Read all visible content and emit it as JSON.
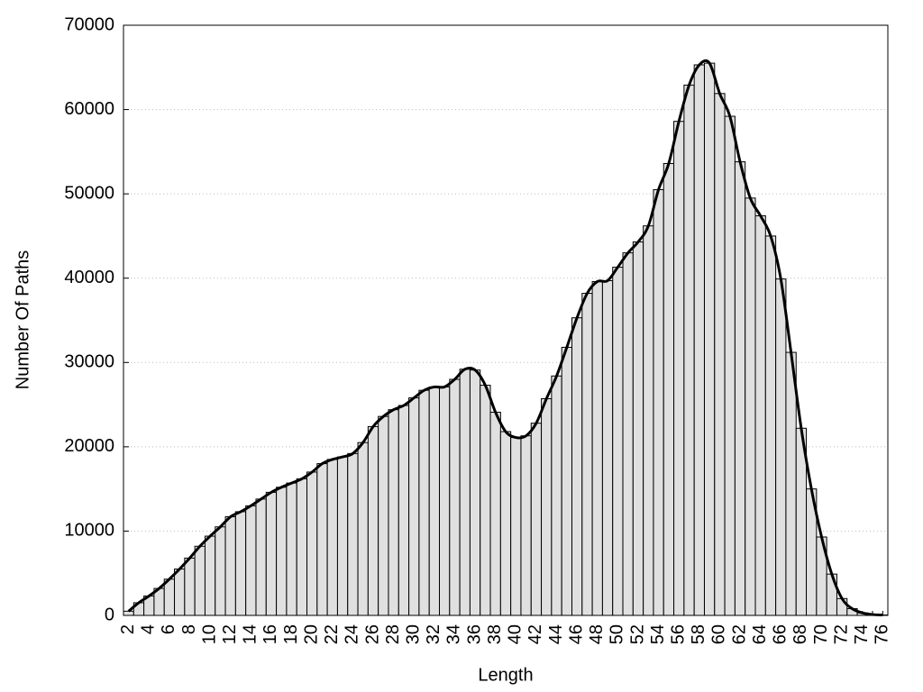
{
  "chart_data": {
    "type": "bar",
    "xlabel": "Length",
    "ylabel": "Number Of Paths",
    "categories": [
      "2",
      null,
      "4",
      null,
      "6",
      null,
      "8",
      null,
      "10",
      null,
      "12",
      null,
      "14",
      null,
      "16",
      null,
      "18",
      null,
      "20",
      null,
      "22",
      null,
      "24",
      null,
      "26",
      null,
      "28",
      null,
      "30",
      null,
      "32",
      null,
      "34",
      null,
      "36",
      null,
      "38",
      null,
      "40",
      null,
      "42",
      null,
      "44",
      null,
      "46",
      null,
      "48",
      null,
      "50",
      null,
      "52",
      null,
      "54",
      null,
      "56",
      null,
      "58",
      null,
      "60",
      null,
      "62",
      null,
      "64",
      null,
      "66",
      null,
      "68",
      null,
      "70",
      null,
      "72",
      null,
      "74",
      null,
      "76"
    ],
    "series": [
      {
        "type": "bar",
        "color": "#e0e0e0",
        "values": [
          500,
          1500,
          2300,
          3200,
          4300,
          5500,
          6800,
          8200,
          9400,
          10500,
          11700,
          12300,
          13000,
          13800,
          14600,
          15200,
          15700,
          16200,
          17000,
          18000,
          18500,
          18800,
          19200,
          20500,
          22400,
          23600,
          24400,
          24900,
          25800,
          26700,
          27100,
          27100,
          28000,
          29200,
          29100,
          27300,
          24100,
          21800,
          21100,
          21300,
          22800,
          25700,
          28400,
          31800,
          35300,
          38200,
          39600,
          39700,
          41300,
          43000,
          44300,
          46200,
          50500,
          53600,
          58600,
          62900,
          65300,
          65500,
          61900,
          59200,
          53800,
          49500,
          47400,
          45000,
          39900,
          31200,
          22200,
          15000,
          9300,
          4900,
          2000,
          800,
          300,
          100,
          50
        ]
      },
      {
        "type": "line",
        "color": "#000000",
        "values": [
          500,
          1500,
          2300,
          3200,
          4300,
          5500,
          6800,
          8200,
          9400,
          10500,
          11700,
          12300,
          13000,
          13800,
          14600,
          15200,
          15700,
          16200,
          17000,
          18000,
          18500,
          18800,
          19200,
          20500,
          22400,
          23600,
          24400,
          24900,
          25800,
          26700,
          27100,
          27100,
          28000,
          29200,
          29100,
          27300,
          24100,
          21800,
          21100,
          21300,
          22800,
          25700,
          28400,
          31800,
          35300,
          38200,
          39600,
          39700,
          41300,
          43000,
          44300,
          46200,
          50500,
          53600,
          58600,
          62900,
          65300,
          65500,
          61900,
          59200,
          53800,
          49500,
          47400,
          45000,
          39900,
          31200,
          22200,
          15000,
          9300,
          4900,
          2000,
          800,
          300,
          100,
          50
        ]
      }
    ],
    "ylim": [
      0,
      70000
    ],
    "yticks": [
      0,
      10000,
      20000,
      30000,
      40000,
      50000,
      60000,
      70000
    ],
    "grid": true
  }
}
